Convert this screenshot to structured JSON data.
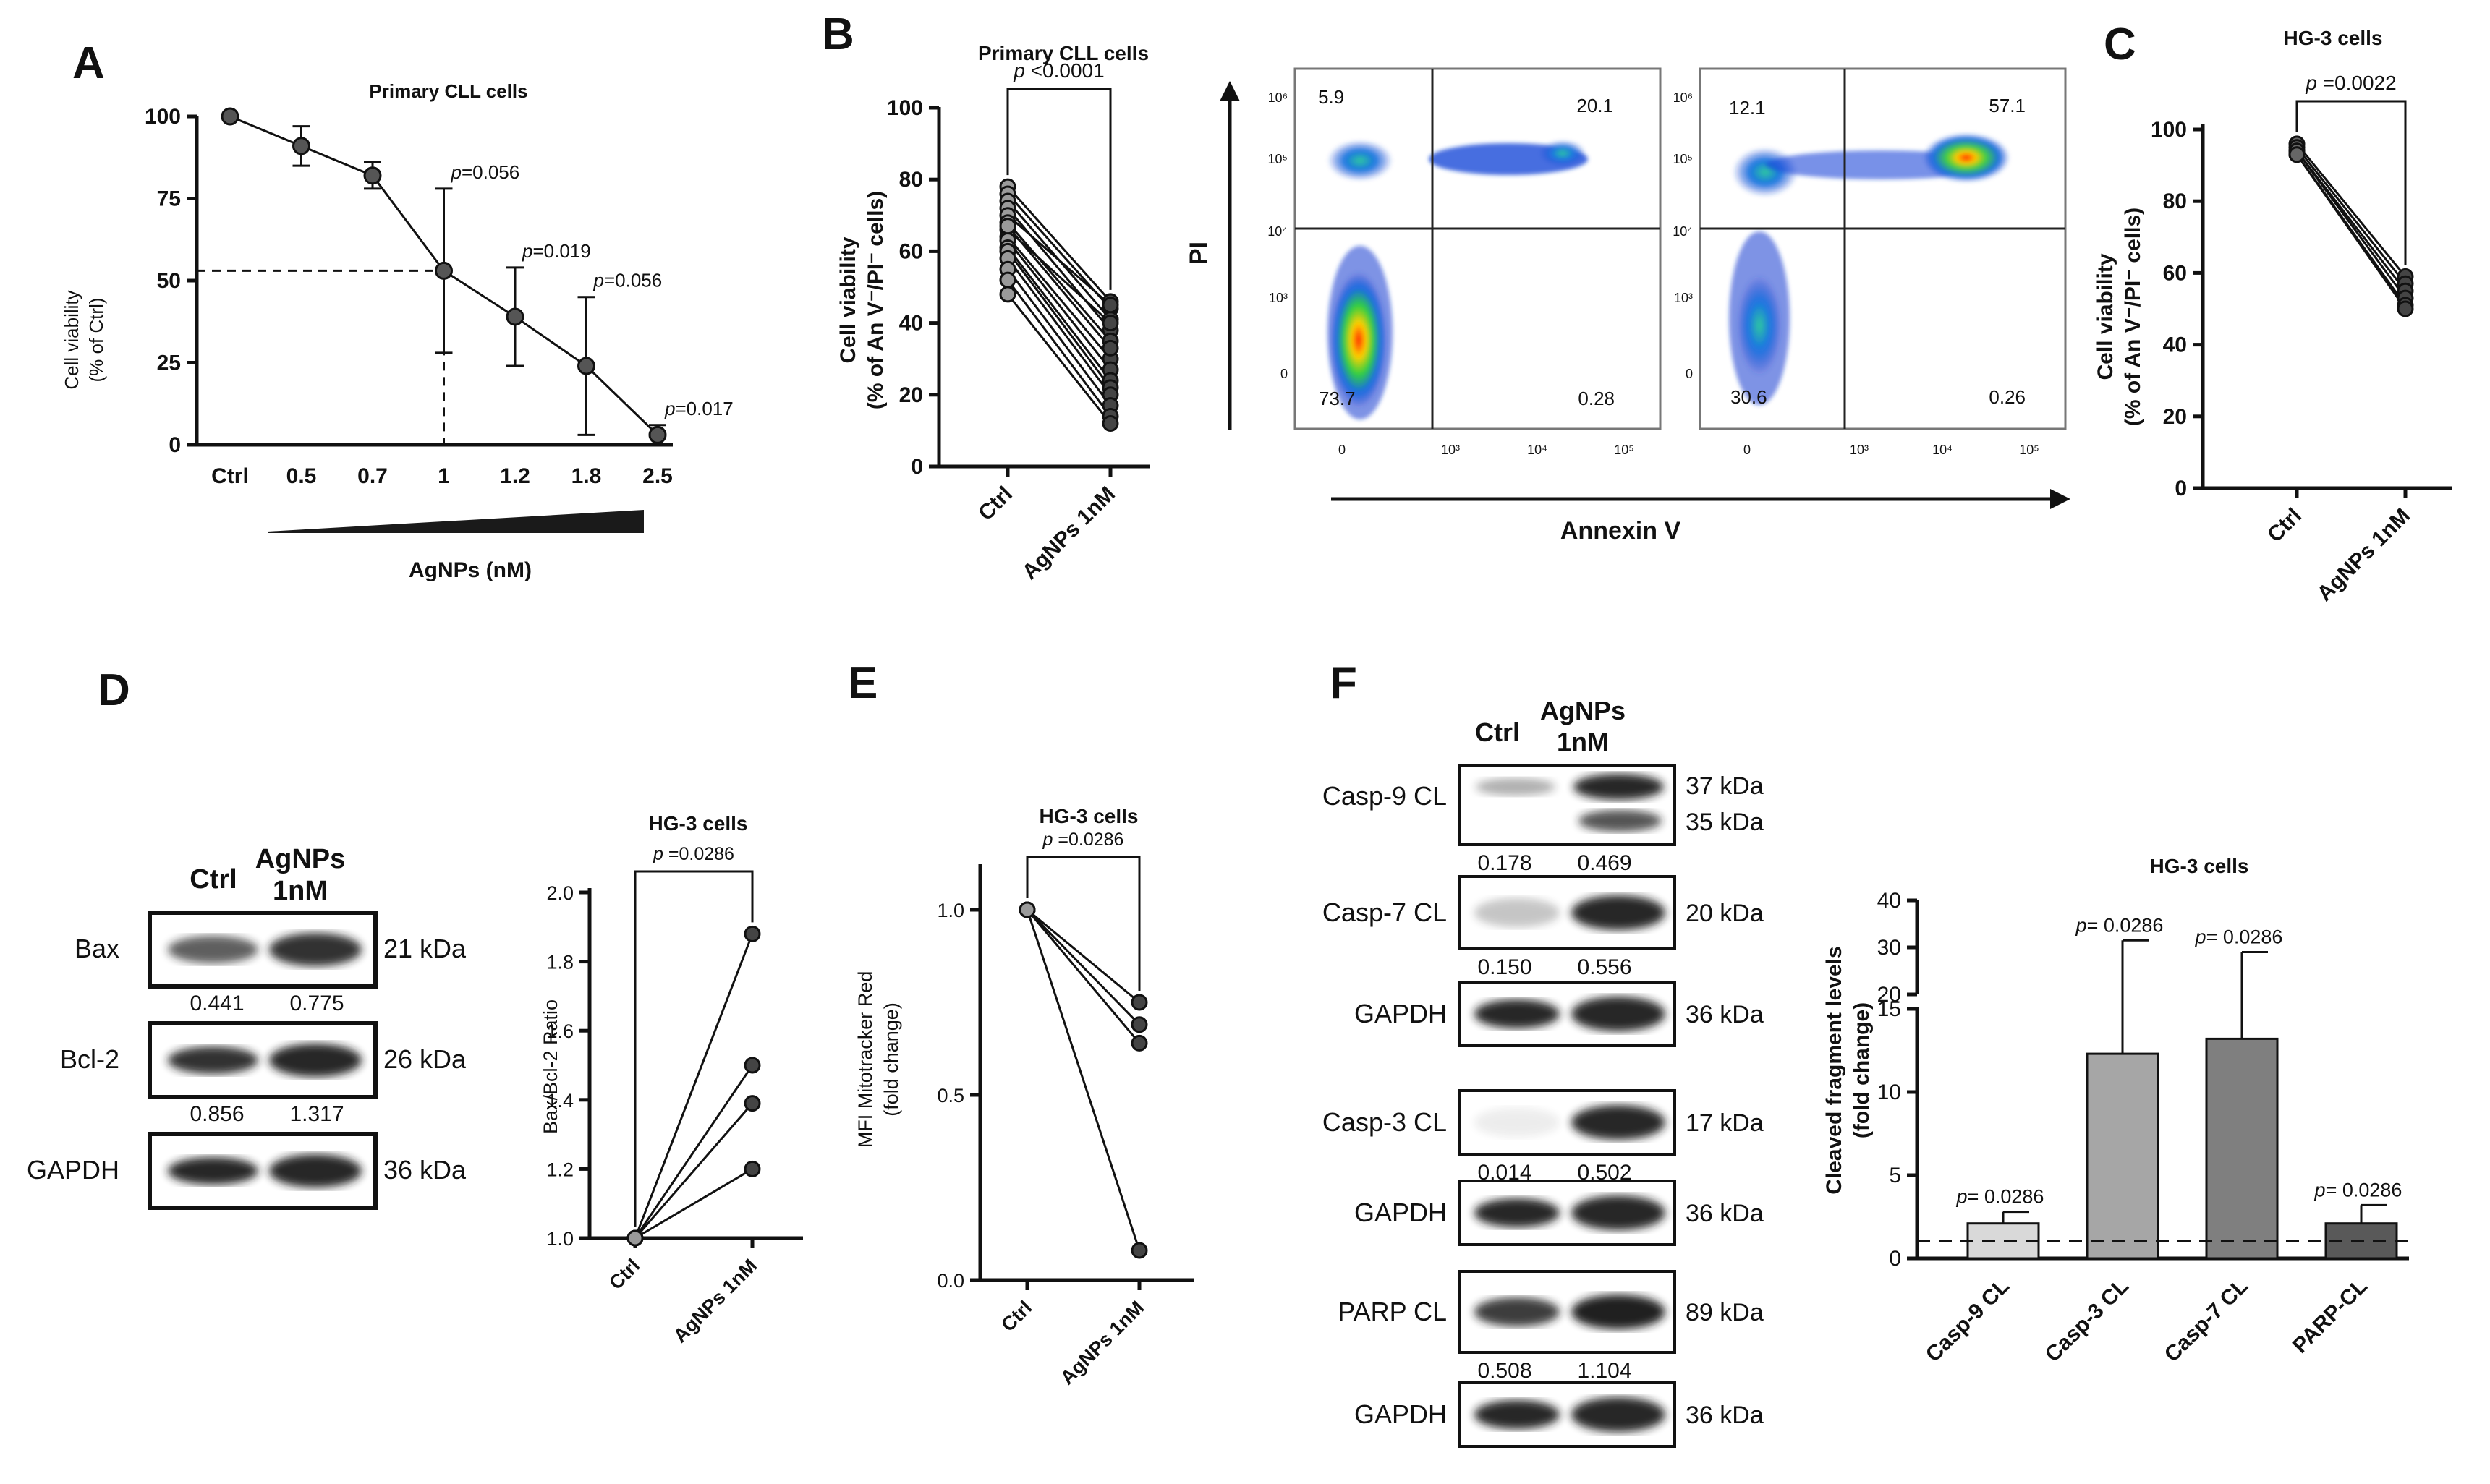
{
  "panels": {
    "A": {
      "letter": "A"
    },
    "B": {
      "letter": "B"
    },
    "C": {
      "letter": "C"
    },
    "D": {
      "letter": "D"
    },
    "E": {
      "letter": "E"
    },
    "F": {
      "letter": "F"
    }
  },
  "chart_data": [
    {
      "id": "A",
      "type": "line",
      "title": "Primary CLL cells",
      "xlabel": "AgNPs (nM)",
      "ylabel_line1": "Cell viability",
      "ylabel_line2": "(% of Ctrl)",
      "categories": [
        "Ctrl",
        "0.5",
        "0.7",
        "1",
        "1.2",
        "1.8",
        "2.5"
      ],
      "values": [
        100,
        91,
        82,
        53,
        39,
        24,
        3
      ],
      "err": [
        0,
        6,
        4,
        25,
        15,
        21,
        3
      ],
      "yticks": [
        0,
        25,
        50,
        75,
        100
      ],
      "ylim": [
        0,
        100
      ],
      "ic50_y": 53,
      "annotations": [
        {
          "cat": "1",
          "p": "p",
          "text": "=0.056"
        },
        {
          "cat": "1.2",
          "p": "p",
          "text": "=0.019"
        },
        {
          "cat": "1.8",
          "p": "p",
          "text": "=0.056"
        },
        {
          "cat": "2.5",
          "p": "p",
          "text": "=0.017"
        }
      ]
    },
    {
      "id": "B",
      "type": "scatter",
      "title": "Primary CLL cells",
      "ylabel_line1": "Cell viability",
      "ylabel_line2": "(% of An V⁻/PI⁻ cells)",
      "categories": [
        "Ctrl",
        "AgNPs 1nM"
      ],
      "pvalue_p": "p",
      "pvalue": " <0.0001",
      "yticks": [
        0,
        20,
        40,
        60,
        80,
        100
      ],
      "ylim": [
        0,
        100
      ],
      "pairs": [
        [
          78,
          46
        ],
        [
          76,
          44
        ],
        [
          74,
          41
        ],
        [
          72,
          38
        ],
        [
          70,
          45
        ],
        [
          68,
          35
        ],
        [
          66,
          40
        ],
        [
          64,
          30
        ],
        [
          63,
          27
        ],
        [
          61,
          24
        ],
        [
          60,
          22
        ],
        [
          58,
          20
        ],
        [
          55,
          17
        ],
        [
          52,
          14
        ],
        [
          48,
          12
        ],
        [
          67,
          33
        ]
      ]
    },
    {
      "id": "C",
      "type": "scatter",
      "title": "HG-3 cells",
      "ylabel_line1": "Cell viability",
      "ylabel_line2": "(% of An V⁻/PI⁻ cells)",
      "categories": [
        "Ctrl",
        "AgNPs 1nM"
      ],
      "pvalue_p": "p",
      "pvalue": " =0.0022",
      "yticks": [
        0,
        20,
        40,
        60,
        80,
        100
      ],
      "ylim": [
        0,
        100
      ],
      "pairs": [
        [
          96,
          59
        ],
        [
          95,
          57
        ],
        [
          94,
          55
        ],
        [
          94,
          53
        ],
        [
          93,
          51
        ],
        [
          93,
          50
        ]
      ]
    },
    {
      "id": "D",
      "type": "scatter",
      "title": "HG-3 cells",
      "ylabel": "Bax/Bcl-2 Ratio",
      "categories": [
        "Ctrl",
        "AgNPs 1nM"
      ],
      "pvalue_p": "p",
      "pvalue": " =0.0286",
      "yticks": [
        "1.0",
        "1.2",
        "1.4",
        "1.6",
        "1.8",
        "2.0"
      ],
      "ylim": [
        1.0,
        2.0
      ],
      "pairs": [
        [
          1.0,
          1.88
        ],
        [
          1.0,
          1.5
        ],
        [
          1.0,
          1.39
        ],
        [
          1.0,
          1.2
        ]
      ]
    },
    {
      "id": "E",
      "type": "scatter",
      "title": "HG-3 cells",
      "ylabel_line1": "MFI Mitotracker Red",
      "ylabel_line2": "(fold change)",
      "categories": [
        "Ctrl",
        "AgNPs 1nM"
      ],
      "pvalue_p": "p",
      "pvalue": " =0.0286",
      "yticks": [
        "0.0",
        "0.5",
        "1.0"
      ],
      "ylim": [
        0.0,
        1.0
      ],
      "pairs": [
        [
          1.0,
          0.75
        ],
        [
          1.0,
          0.69
        ],
        [
          1.0,
          0.64
        ],
        [
          1.0,
          0.08
        ]
      ]
    },
    {
      "id": "F",
      "type": "bar",
      "title": "HG-3 cells",
      "ylabel_line1": "Cleaved fragment levels",
      "ylabel_line2": "(fold change)",
      "categories": [
        "Casp-9 CL",
        "Casp-3 CL",
        "Casp-7 CL",
        "PARP-CL"
      ],
      "values": [
        2.1,
        12.3,
        13.2,
        2.1
      ],
      "err_upper": [
        2.8,
        31.5,
        29.0,
        3.2
      ],
      "colors": [
        "#d9d9d9",
        "#a6a6a6",
        "#7f7f7f",
        "#595959"
      ],
      "pvalues": [
        "= 0.0286",
        "= 0.0286",
        "= 0.0286",
        "= 0.0286"
      ],
      "pvalue_p": "p",
      "yticks_low": [
        0,
        5,
        10,
        15
      ],
      "yticks_high": [
        20,
        30,
        40
      ],
      "reference_line": 1.0
    }
  ],
  "flow": {
    "xlabel": "Annexin V",
    "ylabel": "PI",
    "yticks": [
      "10⁶",
      "10⁵",
      "10⁴",
      "10³",
      "0"
    ],
    "xticks": [
      "0",
      "10³",
      "10⁴",
      "10⁵"
    ],
    "plot1": {
      "q1": "5.9",
      "q2": "20.1",
      "q3": "73.7",
      "q4": "0.28"
    },
    "plot2": {
      "q1": "12.1",
      "q2": "57.1",
      "q3": "30.6",
      "q4": "0.26"
    }
  },
  "blots_D": {
    "col1": "Ctrl",
    "col2_line1": "AgNPs",
    "col2_line2": "1nM",
    "rows": [
      {
        "name": "Bax",
        "kda": "21 kDa",
        "v1": "0.441",
        "v2": "0.775"
      },
      {
        "name": "Bcl-2",
        "kda": "26 kDa",
        "v1": "0.856",
        "v2": "1.317"
      },
      {
        "name": "GAPDH",
        "kda": "36 kDa"
      }
    ]
  },
  "blots_F": {
    "col1": "Ctrl",
    "col2_line1": "AgNPs",
    "col2_line2": "1nM",
    "rows": [
      {
        "name": "Casp-9 CL",
        "kda": "37 kDa",
        "kda2": "35 kDa",
        "v1": "0.178",
        "v2": "0.469"
      },
      {
        "name": "Casp-7 CL",
        "kda": "20 kDa",
        "v1": "0.150",
        "v2": "0.556"
      },
      {
        "name": "GAPDH",
        "kda": "36 kDa"
      },
      {
        "name": "Casp-3 CL",
        "kda": "17 kDa",
        "v1": "0.014",
        "v2": "0.502"
      },
      {
        "name": "GAPDH",
        "kda": "36 kDa"
      },
      {
        "name": "PARP CL",
        "kda": "89 kDa",
        "v1": "0.508",
        "v2": "1.104"
      },
      {
        "name": "GAPDH",
        "kda": "36 kDa"
      }
    ]
  }
}
